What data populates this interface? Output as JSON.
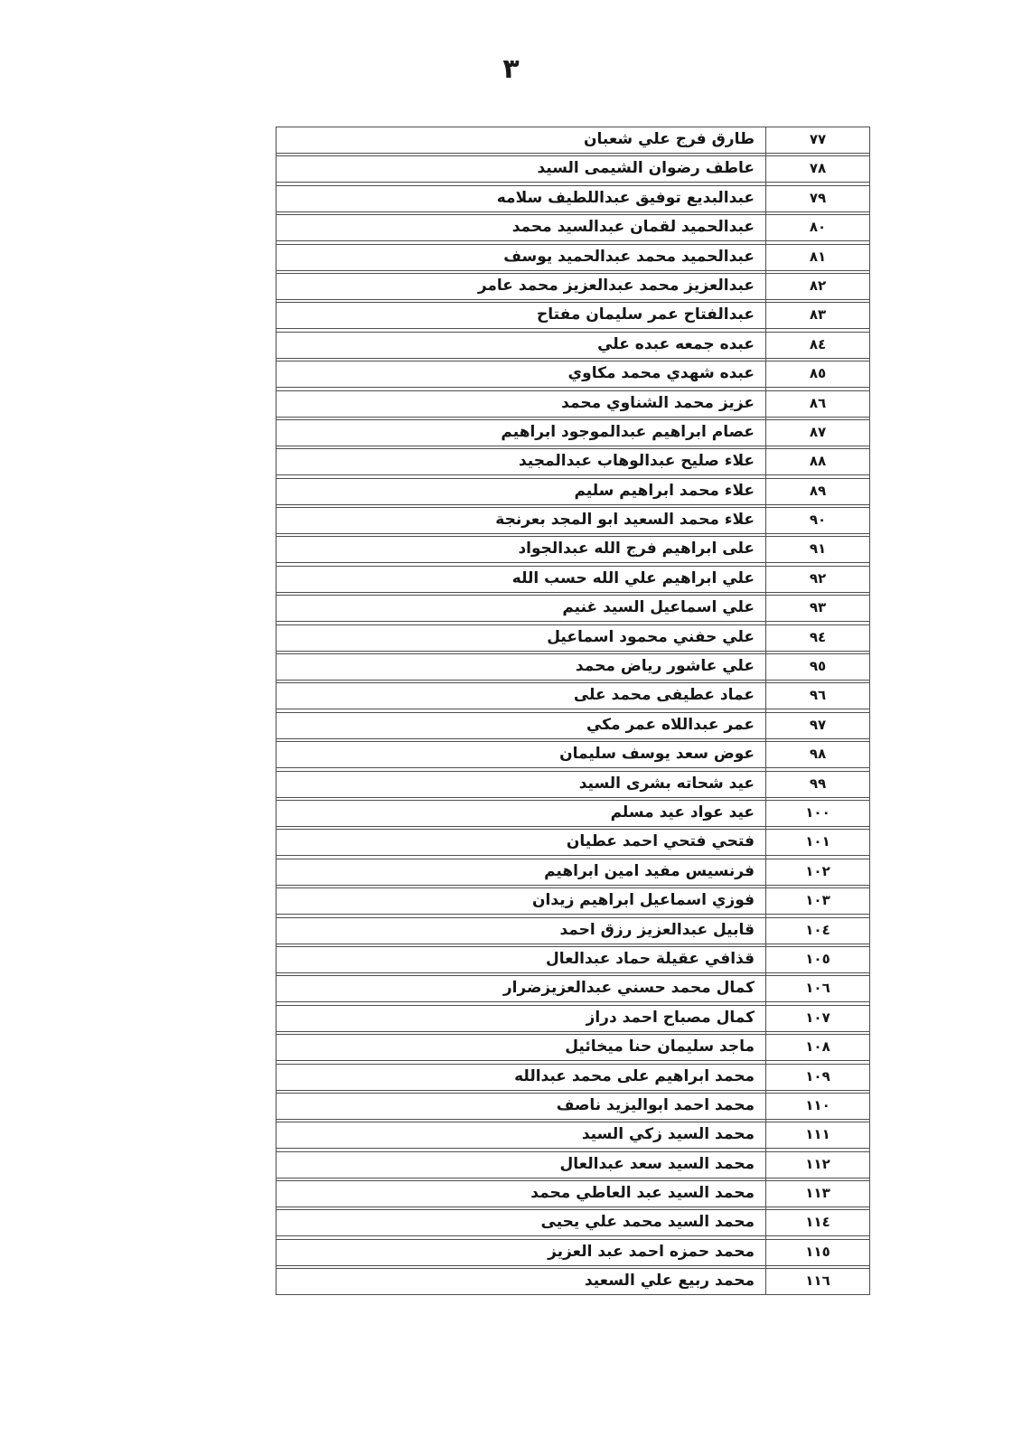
{
  "page": {
    "number_label": "٣"
  },
  "colors": {
    "paper": "#ffffff",
    "text": "#161616",
    "table_border": "#4d4d4d"
  },
  "table": {
    "rows": [
      {
        "no": "٧٧",
        "name": "طارق فرج علي شعبان"
      },
      {
        "no": "٧٨",
        "name": "عاطف رضوان الشيمى السيد"
      },
      {
        "no": "٧٩",
        "name": "عبدالبديع توفيق عبداللطيف سلامه"
      },
      {
        "no": "٨٠",
        "name": "عبدالحميد لقمان عبدالسيد محمد"
      },
      {
        "no": "٨١",
        "name": "عبدالحميد محمد عبدالحميد يوسف"
      },
      {
        "no": "٨٢",
        "name": "عبدالعزيز محمد عبدالعزيز محمد عامر"
      },
      {
        "no": "٨٣",
        "name": "عبدالفتاح عمر سليمان مفتاح"
      },
      {
        "no": "٨٤",
        "name": "عبده جمعه عبده علي"
      },
      {
        "no": "٨٥",
        "name": "عبده شهدي محمد مكاوي"
      },
      {
        "no": "٨٦",
        "name": "عزيز محمد الشناوي محمد"
      },
      {
        "no": "٨٧",
        "name": "عصام ابراهيم عبدالموجود ابراهيم"
      },
      {
        "no": "٨٨",
        "name": "علاء صليح عبدالوهاب عبدالمجيد"
      },
      {
        "no": "٨٩",
        "name": "علاء محمد ابراهيم سليم"
      },
      {
        "no": "٩٠",
        "name": "علاء محمد السعيد ابو المجد بعرنجة"
      },
      {
        "no": "٩١",
        "name": "على ابراهيم فرج الله عبدالجواد"
      },
      {
        "no": "٩٢",
        "name": "علي ابراهيم علي الله حسب الله"
      },
      {
        "no": "٩٣",
        "name": "علي اسماعيل السيد غنيم"
      },
      {
        "no": "٩٤",
        "name": "علي حفني محمود اسماعيل"
      },
      {
        "no": "٩٥",
        "name": "علي عاشور رياض محمد"
      },
      {
        "no": "٩٦",
        "name": "عماد عطيفى محمد على"
      },
      {
        "no": "٩٧",
        "name": "عمر عبداللاه عمر مكي"
      },
      {
        "no": "٩٨",
        "name": "عوض سعد يوسف سليمان"
      },
      {
        "no": "٩٩",
        "name": "عيد شحاته بشرى السيد"
      },
      {
        "no": "١٠٠",
        "name": "عيد عواد عيد مسلم"
      },
      {
        "no": "١٠١",
        "name": "فتحي فتحي احمد عطيان"
      },
      {
        "no": "١٠٢",
        "name": "فرنسيس مفيد امين ابراهيم"
      },
      {
        "no": "١٠٣",
        "name": "فوزي اسماعيل ابراهيم زيدان"
      },
      {
        "no": "١٠٤",
        "name": "قابيل عبدالعزيز رزق احمد"
      },
      {
        "no": "١٠٥",
        "name": "قذافي عقيلة حماد عبدالعال"
      },
      {
        "no": "١٠٦",
        "name": "كمال محمد حسني عبدالعزيزضرار"
      },
      {
        "no": "١٠٧",
        "name": "كمال مصباح احمد دراز"
      },
      {
        "no": "١٠٨",
        "name": "ماجد سليمان حنا ميخائيل"
      },
      {
        "no": "١٠٩",
        "name": "محمد ابراهيم على محمد عبدالله"
      },
      {
        "no": "١١٠",
        "name": "محمد احمد ابواليزيد ناصف"
      },
      {
        "no": "١١١",
        "name": "محمد السيد زكي السيد"
      },
      {
        "no": "١١٢",
        "name": "محمد السيد سعد عبدالعال"
      },
      {
        "no": "١١٣",
        "name": "محمد السيد عبد العاطي محمد"
      },
      {
        "no": "١١٤",
        "name": "محمد السيد محمد علي يحيى"
      },
      {
        "no": "١١٥",
        "name": "محمد حمزه احمد عبد العزيز"
      },
      {
        "no": "١١٦",
        "name": "محمد ربيع علي السعيد"
      }
    ]
  }
}
